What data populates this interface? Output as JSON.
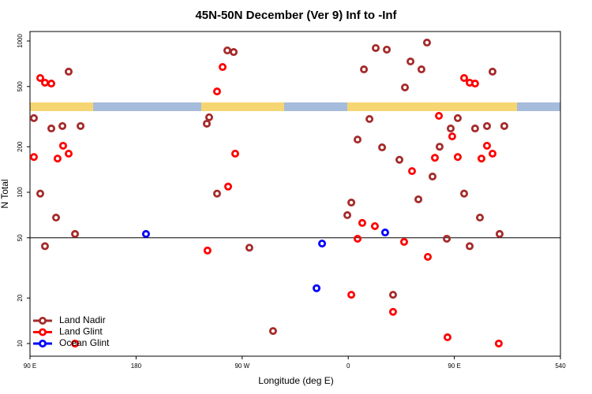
{
  "chart_data": {
    "type": "scatter",
    "title": "45N-50N December (Ver 9)   Inf to -Inf",
    "x_label": "Longitude (deg E)",
    "y_label": "N Total",
    "xlim": [
      90,
      540
    ],
    "xticks": [
      {
        "value": 90,
        "label": "90 E"
      },
      180,
      {
        "value": 270,
        "label": "90 W"
      },
      {
        "value": 360,
        "label": "0"
      },
      {
        "value": 450,
        "label": "90 E"
      },
      540
    ],
    "ylim": [
      8.25,
      1155
    ],
    "yticks": [
      10,
      20,
      50,
      100,
      200,
      500,
      1000
    ],
    "log_y": true,
    "hline": 50,
    "legend": "bottom-left",
    "series": [
      {
        "name": "Land Nadir",
        "color": "#a52a2a",
        "x": [
          93.3,
          98.7,
          102.7,
          108.1,
          112.1,
          117.5,
          122.8,
          128.2,
          132.9,
          240.0,
          242.0,
          248.7,
          257.4,
          262.8,
          276.1,
          296.2,
          359.2,
          362.6,
          367.9,
          373.3,
          378.0,
          383.3,
          388.7,
          392.7,
          398.0,
          403.4,
          408.1,
          412.8,
          419.5,
          422.1,
          426.8,
          431.5,
          437.5,
          443.6,
          446.9,
          452.9,
          458.3,
          463.0,
          467.6,
          471.7,
          477.7,
          482.4,
          488.4,
          492.4
        ],
        "values": [
          309,
          98,
          44,
          264,
          68,
          274,
          627,
          53,
          274,
          284,
          313,
          98,
          866,
          845,
          43,
          12.1,
          70.6,
          85.5,
          223,
          649,
          305,
          898,
          198,
          877,
          21,
          164,
          493,
          732,
          89.8,
          649,
          976,
          127,
          200,
          49.3,
          264,
          309,
          98,
          44,
          264,
          68,
          274,
          627,
          53,
          274
        ]
      },
      {
        "name": "Land Glint",
        "color": "#ff0000",
        "x": [
          93.3,
          98.7,
          102.7,
          108.1,
          113.4,
          118.1,
          122.8,
          128.2,
          240.6,
          248.7,
          253.4,
          258.1,
          264.1,
          362.6,
          367.9,
          371.9,
          382.6,
          398.0,
          407.4,
          414.1,
          427.5,
          433.5,
          436.9,
          444.2,
          448.2,
          452.9,
          458.3,
          463.0,
          467.6,
          473.0,
          477.7,
          482.4,
          487.7
        ],
        "values": [
          171,
          569,
          530,
          523,
          167,
          203,
          180,
          10,
          41.2,
          464,
          673,
          109,
          180,
          21,
          49.3,
          62.7,
          59.7,
          16.2,
          47,
          138,
          37.4,
          169,
          320,
          11,
          234,
          171,
          569,
          530,
          523,
          167,
          203,
          180,
          10
        ]
      },
      {
        "name": "Ocean Glint",
        "color": "#0000ff",
        "x": [
          188.4,
          333.1,
          337.8,
          391.3
        ],
        "values": [
          53,
          23.2,
          45.8,
          54.2
        ]
      }
    ]
  }
}
